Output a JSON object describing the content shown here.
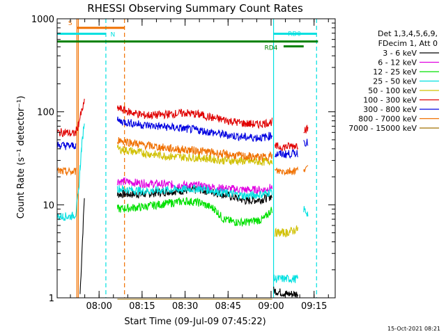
{
  "chart_data": {
    "type": "line",
    "title": "RHESSI Observing Summary Count Rates",
    "xlabel": "Start Time (09-Jul-09 07:45:22)",
    "ylabel": "Count Rate (s⁻¹ detector⁻¹)",
    "x_unit": "minutes after 07:45:22",
    "xlim": [
      0,
      97
    ],
    "ylim": [
      1,
      1000
    ],
    "y_scale": "log",
    "x_ticks": [
      {
        "x": 14.63,
        "label": "08:00"
      },
      {
        "x": 29.63,
        "label": "08:15"
      },
      {
        "x": 44.63,
        "label": "08:30"
      },
      {
        "x": 59.63,
        "label": "08:45"
      },
      {
        "x": 74.63,
        "label": "09:00"
      },
      {
        "x": 89.63,
        "label": "09:15"
      }
    ],
    "y_ticks": [
      {
        "y": 1,
        "label": "1"
      },
      {
        "y": 10,
        "label": "10"
      },
      {
        "y": 100,
        "label": "100"
      },
      {
        "y": 1000,
        "label": "1000"
      }
    ],
    "legend_header": [
      "Det 1,3,4,5,6,9,",
      "FDecim 1, Att 0"
    ],
    "legend_position": "right",
    "series": [
      {
        "name": "3 - 6 keV",
        "color": "#000000",
        "segments": [
          {
            "x": [
              0,
              6,
              8,
              9.5
            ],
            "y": [
              null,
              null,
              1.1,
              12
            ]
          },
          {
            "x": [
              21,
              30,
              40,
              50,
              58,
              66,
              72,
              75
            ],
            "y": [
              13,
              13,
              14,
              14.5,
              13,
              11,
              11.5,
              12.5
            ]
          },
          {
            "x": [
              75.5,
              80,
              84
            ],
            "y": [
              1.2,
              1.1,
              1.1
            ]
          }
        ]
      },
      {
        "name": "6 - 12 keV",
        "color": "#e000e0",
        "segments": [
          {
            "x": [
              21,
              30,
              40,
              50,
              58,
              66,
              72,
              75
            ],
            "y": [
              18,
              17,
              16.5,
              16,
              15,
              14.5,
              14.5,
              15.5
            ]
          }
        ]
      },
      {
        "name": "12 - 25 keV",
        "color": "#00e000",
        "segments": [
          {
            "x": [
              21,
              30,
              40,
              45,
              50,
              55,
              58,
              62,
              66,
              72,
              75
            ],
            "y": [
              9,
              9.5,
              10.5,
              11,
              10.5,
              9,
              7,
              6.5,
              6.5,
              7,
              9
            ]
          }
        ]
      },
      {
        "name": "25 - 50 keV",
        "color": "#00e0e0",
        "segments": [
          {
            "x": [
              0,
              2,
              5,
              6.5
            ],
            "y": [
              7.5,
              7.5,
              7.5,
              8
            ]
          },
          {
            "x": [
              6.5,
              7.5,
              8,
              8.5,
              9.5
            ],
            "y": [
              8,
              14,
              25,
              40,
              80
            ]
          },
          {
            "x": [
              21,
              30,
              40,
              50,
              58,
              66,
              72,
              75
            ],
            "y": [
              15,
              14,
              14.5,
              15,
              13.5,
              12.5,
              13,
              14
            ]
          },
          {
            "x": [
              75.5,
              80,
              84
            ],
            "y": [
              1.6,
              1.6,
              1.6
            ]
          },
          {
            "x": [
              86,
              87.5
            ],
            "y": [
              9,
              8
            ]
          }
        ]
      },
      {
        "name": "50 - 100 keV",
        "color": "#d0c000",
        "segments": [
          {
            "x": [
              21,
              30,
              40,
              50,
              58,
              66,
              72,
              75
            ],
            "y": [
              40,
              36,
              33,
              32,
              30,
              29.5,
              29,
              30
            ]
          },
          {
            "x": [
              76,
              80,
              84
            ],
            "y": [
              5,
              5,
              5.5
            ]
          }
        ]
      },
      {
        "name": "100 - 300 keV",
        "color": "#e00000",
        "segments": [
          {
            "x": [
              0,
              3,
              5.5,
              6.5
            ],
            "y": [
              60,
              60,
              58,
              60
            ]
          },
          {
            "x": [
              6.5,
              7.5,
              8.5,
              9.5
            ],
            "y": [
              60,
              75,
              100,
              125
            ]
          },
          {
            "x": [
              21,
              25,
              30,
              35,
              40,
              45,
              50,
              55,
              60,
              65,
              70,
              75
            ],
            "y": [
              110,
              100,
              92,
              92,
              95,
              97,
              93,
              85,
              80,
              75,
              73,
              78
            ]
          },
          {
            "x": [
              76,
              80,
              84
            ],
            "y": [
              42,
              42,
              44
            ]
          },
          {
            "x": [
              86,
              87.5
            ],
            "y": [
              65,
              65
            ]
          }
        ]
      },
      {
        "name": "300 - 800 keV",
        "color": "#0000e0",
        "segments": [
          {
            "x": [
              0,
              3,
              5.5,
              6.5
            ],
            "y": [
              44,
              43,
              43,
              44
            ]
          },
          {
            "x": [
              21,
              30,
              40,
              50,
              58,
              66,
              72,
              75
            ],
            "y": [
              80,
              72,
              68,
              63,
              57,
              53,
              53,
              56
            ]
          },
          {
            "x": [
              76,
              80,
              84
            ],
            "y": [
              35,
              35,
              36
            ]
          },
          {
            "x": [
              86,
              87.5
            ],
            "y": [
              48,
              46
            ]
          }
        ]
      },
      {
        "name": "800 - 7000 keV",
        "color": "#f07000",
        "segments": [
          {
            "x": [
              0,
              3,
              5.5,
              6.5
            ],
            "y": [
              23,
              22.5,
              22.5,
              23
            ]
          },
          {
            "x": [
              21,
              30,
              40,
              50,
              58,
              66,
              72,
              75
            ],
            "y": [
              50,
              44,
              40,
              38,
              35,
              33,
              32.5,
              34
            ]
          },
          {
            "x": [
              76,
              80,
              84
            ],
            "y": [
              23,
              23,
              23.5
            ]
          },
          {
            "x": [
              86,
              87.5
            ],
            "y": [
              25,
              24
            ]
          }
        ]
      },
      {
        "name": "7000 - 15000 keV",
        "color": "#a07000",
        "segments": [
          {
            "x": [
              21,
              60,
              75
            ],
            "y": [
              0.5,
              0.5,
              0.5
            ]
          }
        ]
      }
    ],
    "flag_bars": [
      {
        "label": "S",
        "color": "#f07000",
        "x_start": 7,
        "x_end": 23.5,
        "y": 800
      },
      {
        "label": "N",
        "color": "#00e0e0",
        "x_start": 0,
        "x_end": 17,
        "y": 690
      },
      {
        "label": "RD0",
        "color": "#00e0e0",
        "x_start": 75.5,
        "x_end": 90.5,
        "y": 690
      },
      {
        "label": "",
        "color": "#008000",
        "x_start": 0,
        "x_end": 91,
        "y": 570
      },
      {
        "label": "RD4",
        "color": "#008000",
        "x_start": 79,
        "x_end": 86,
        "y": 505
      }
    ],
    "timestamp": "15-Oct-2021 08:21"
  }
}
